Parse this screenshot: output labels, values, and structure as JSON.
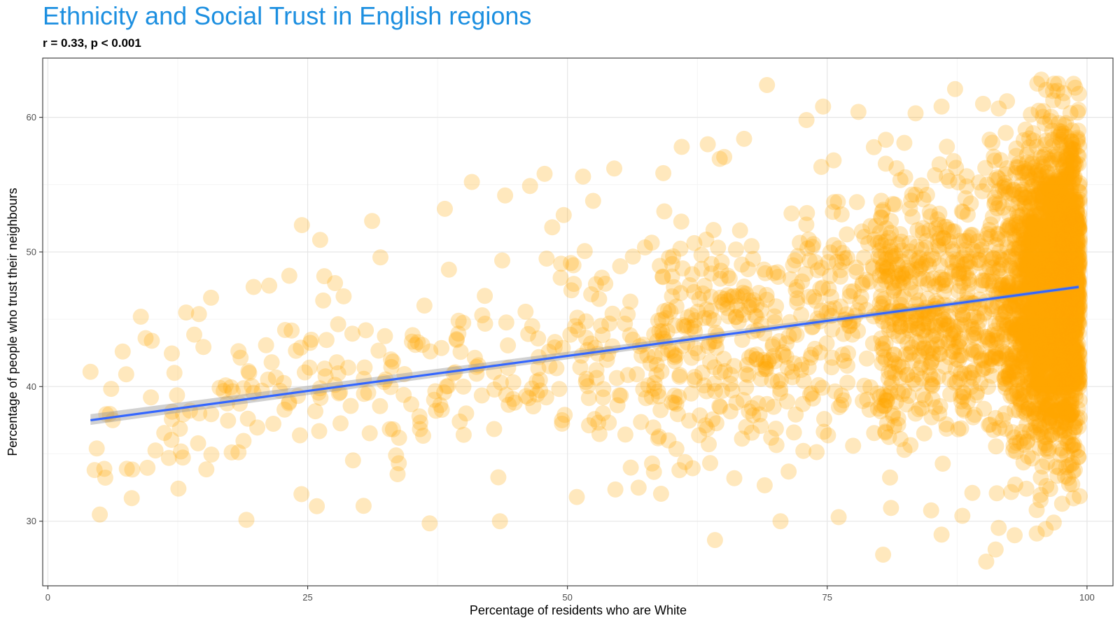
{
  "chart_data": {
    "type": "scatter",
    "title": "Ethnicity and Social Trust in English regions",
    "subtitle": "r = 0.33, p < 0.001",
    "xlabel": "Percentage of residents who are White",
    "ylabel": "Percentage of people who trust their neighbours",
    "xlim": [
      -0.5,
      102.5
    ],
    "ylim": [
      25.2,
      64.4
    ],
    "x_ticks": [
      0,
      25,
      50,
      75,
      100
    ],
    "y_ticks": [
      30,
      40,
      50,
      60
    ],
    "grid": true,
    "colors": {
      "points": "#FFA500",
      "trend_line": "#3366FF",
      "confidence_band": "#999999",
      "title": "#1C8FE0"
    },
    "points_sample": [
      [
        4.1,
        41.1
      ],
      [
        4.5,
        33.8
      ],
      [
        4.7,
        35.4
      ],
      [
        5.0,
        30.5
      ],
      [
        7.2,
        42.6
      ],
      [
        7.6,
        33.9
      ],
      [
        9.4,
        43.6
      ],
      [
        10.0,
        43.4
      ],
      [
        13.3,
        45.5
      ],
      [
        15.7,
        46.6
      ],
      [
        19.1,
        30.1
      ],
      [
        19.8,
        47.4
      ],
      [
        21.3,
        47.5
      ],
      [
        26.2,
        50.9
      ],
      [
        26.6,
        48.2
      ],
      [
        31.2,
        52.3
      ],
      [
        32.0,
        49.6
      ],
      [
        38.2,
        53.2
      ],
      [
        40.8,
        55.2
      ],
      [
        43.5,
        30.0
      ],
      [
        44.0,
        54.2
      ],
      [
        46.4,
        54.9
      ],
      [
        47.8,
        55.8
      ],
      [
        50.9,
        31.8
      ],
      [
        51.5,
        55.6
      ],
      [
        54.5,
        56.2
      ],
      [
        61.0,
        57.8
      ],
      [
        63.5,
        58.0
      ],
      [
        64.2,
        28.6
      ],
      [
        67.0,
        58.4
      ],
      [
        69.2,
        62.4
      ],
      [
        70.5,
        30.0
      ],
      [
        73.0,
        59.8
      ],
      [
        74.6,
        60.8
      ],
      [
        76.1,
        30.3
      ],
      [
        78.0,
        60.4
      ],
      [
        83.5,
        60.3
      ],
      [
        85.0,
        30.8
      ],
      [
        86.0,
        60.8
      ],
      [
        86.0,
        29.0
      ],
      [
        87.3,
        62.1
      ],
      [
        88.0,
        30.4
      ],
      [
        90.0,
        61.0
      ],
      [
        90.3,
        27.0
      ],
      [
        91.2,
        27.9
      ],
      [
        91.5,
        29.5
      ],
      [
        92.3,
        61.2
      ],
      [
        94.6,
        60.2
      ],
      [
        95.6,
        62.8
      ],
      [
        96.8,
        29.9
      ],
      [
        97.6,
        31.3
      ],
      [
        98.7,
        31.7
      ]
    ],
    "trend_line": {
      "x": [
        4.1,
        99.2
      ],
      "y": [
        37.5,
        47.4
      ],
      "ci_at_start": [
        37.15,
        37.95
      ],
      "ci_at_end": [
        47.25,
        47.55
      ]
    }
  }
}
